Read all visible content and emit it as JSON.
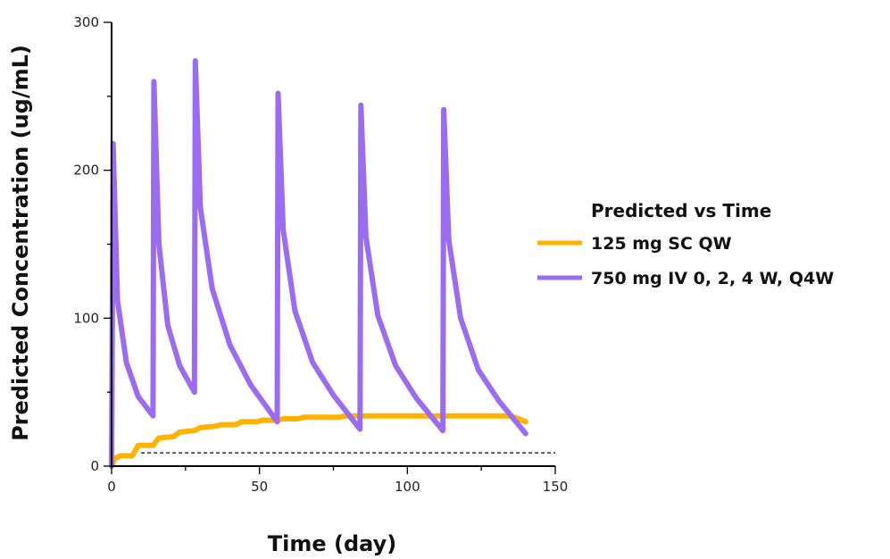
{
  "chart_data": {
    "type": "line",
    "xlabel": "Time (day)",
    "ylabel": "Predicted Concentration (ug/mL)",
    "xlim": [
      0,
      150
    ],
    "ylim": [
      0,
      300
    ],
    "xticks": [
      0,
      50,
      100,
      150
    ],
    "yticks": [
      0,
      100,
      200,
      300
    ],
    "grid": false,
    "legend": {
      "title": "Predicted vs Time",
      "position": "right"
    },
    "series": [
      {
        "name": "125 mg SC QW",
        "color": "#FFB300",
        "points": [
          [
            0,
            0
          ],
          [
            1,
            5
          ],
          [
            3,
            7
          ],
          [
            7,
            7
          ],
          [
            9,
            14
          ],
          [
            14,
            14
          ],
          [
            16,
            19
          ],
          [
            21,
            20
          ],
          [
            23,
            23
          ],
          [
            28,
            24
          ],
          [
            30,
            26
          ],
          [
            35,
            27
          ],
          [
            37,
            28
          ],
          [
            42,
            28
          ],
          [
            44,
            30
          ],
          [
            49,
            30
          ],
          [
            51,
            31
          ],
          [
            56,
            31
          ],
          [
            58,
            32
          ],
          [
            63,
            32
          ],
          [
            65,
            33
          ],
          [
            70,
            33
          ],
          [
            72,
            33
          ],
          [
            77,
            33
          ],
          [
            79,
            34
          ],
          [
            84,
            34
          ],
          [
            86,
            34
          ],
          [
            91,
            34
          ],
          [
            93,
            34
          ],
          [
            98,
            34
          ],
          [
            100,
            34
          ],
          [
            105,
            34
          ],
          [
            107,
            34
          ],
          [
            112,
            34
          ],
          [
            114,
            34
          ],
          [
            119,
            34
          ],
          [
            121,
            34
          ],
          [
            126,
            34
          ],
          [
            128,
            34
          ],
          [
            133,
            34
          ],
          [
            135,
            34
          ],
          [
            140,
            30
          ]
        ]
      },
      {
        "name": "750 mg IV 0, 2, 4 W, Q4W",
        "color": "#9A6CF2",
        "points": [
          [
            0,
            0
          ],
          [
            0.5,
            218
          ],
          [
            2,
            112
          ],
          [
            5,
            70
          ],
          [
            9,
            47
          ],
          [
            14,
            34
          ],
          [
            14.3,
            260
          ],
          [
            16,
            150
          ],
          [
            19,
            95
          ],
          [
            23,
            68
          ],
          [
            28,
            50
          ],
          [
            28.3,
            274
          ],
          [
            30,
            175
          ],
          [
            34,
            120
          ],
          [
            40,
            82
          ],
          [
            47,
            55
          ],
          [
            56,
            30
          ],
          [
            56.3,
            252
          ],
          [
            58,
            160
          ],
          [
            62,
            105
          ],
          [
            68,
            70
          ],
          [
            75,
            48
          ],
          [
            84,
            25
          ],
          [
            84.3,
            244
          ],
          [
            86,
            155
          ],
          [
            90,
            102
          ],
          [
            96,
            68
          ],
          [
            103,
            46
          ],
          [
            112,
            24
          ],
          [
            112.3,
            241
          ],
          [
            114,
            153
          ],
          [
            118,
            100
          ],
          [
            124,
            65
          ],
          [
            131,
            44
          ],
          [
            140,
            22
          ]
        ]
      }
    ],
    "reference_lines": [
      {
        "style": "dashed",
        "y": 9,
        "x_range": [
          10,
          150
        ],
        "color": "#000000"
      }
    ]
  }
}
